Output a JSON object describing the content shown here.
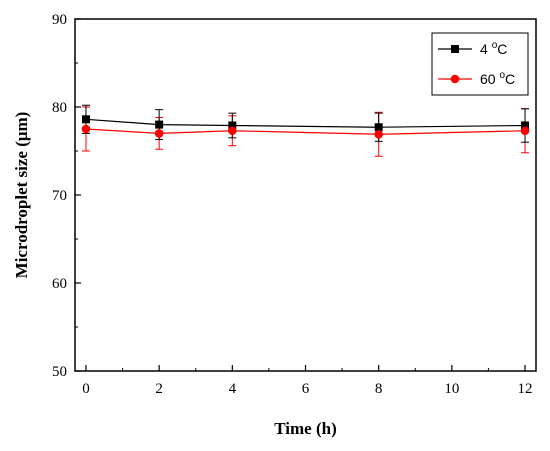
{
  "chart_data": {
    "type": "line",
    "xlabel": "Time (h)",
    "ylabel": "Microdroplet  size (μm)",
    "xlim": [
      -0.3,
      12.3
    ],
    "ylim": [
      50,
      90
    ],
    "xticks": [
      0,
      2,
      4,
      6,
      8,
      10,
      12
    ],
    "yticks": [
      50,
      60,
      70,
      80,
      90
    ],
    "legend_position": "top-right",
    "series": [
      {
        "name_main": "4 ",
        "name_sup": "o",
        "name_unit": "C",
        "color": "#000000",
        "marker": "square",
        "x": [
          0,
          2,
          4,
          8,
          12
        ],
        "y": [
          78.6,
          78.0,
          77.9,
          77.7,
          77.9
        ],
        "err": [
          1.6,
          1.7,
          1.4,
          1.6,
          1.9
        ]
      },
      {
        "name_main": "60 ",
        "name_sup": "o",
        "name_unit": "C",
        "color": "#ff0000",
        "marker": "circle",
        "x": [
          0,
          2,
          4,
          8,
          12
        ],
        "y": [
          77.5,
          77.0,
          77.3,
          76.9,
          77.3
        ],
        "err": [
          2.5,
          1.8,
          1.7,
          2.5,
          2.5
        ]
      }
    ]
  }
}
